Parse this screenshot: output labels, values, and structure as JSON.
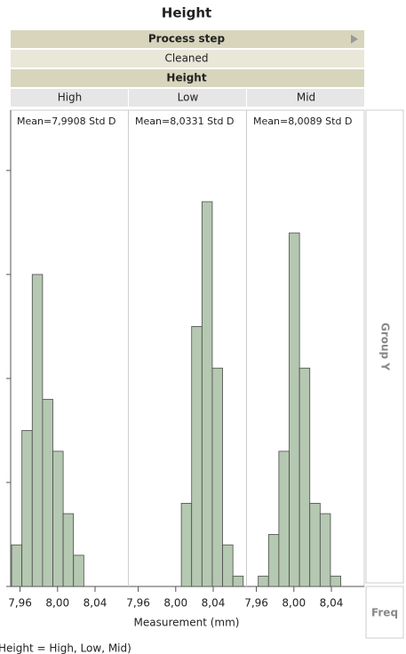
{
  "chart_data": {
    "type": "histogram",
    "title": "Height",
    "group_headers": [
      "Process step",
      "Cleaned",
      "Height"
    ],
    "y_group_label": "Group Y",
    "freq_label": "Freq",
    "x_label": "Measurement (mm)",
    "footnote": "Height = High, Low, Mid)",
    "xlim": [
      7.95,
      8.076
    ],
    "xticks": [
      {
        "value": 7.96,
        "label": "7,96"
      },
      {
        "value": 8.0,
        "label": "8,00"
      },
      {
        "value": 8.04,
        "label": "8,04"
      }
    ],
    "ylim": [
      0,
      45.8
    ],
    "yticks": [
      0,
      10,
      20,
      30,
      40
    ],
    "series": [
      {
        "name": "High",
        "color": "#b5c8b1",
        "stat_label": "Mean=7,9908 Std D",
        "bins": [
          7.951,
          7.962,
          7.973,
          7.984,
          7.995,
          8.006,
          8.017,
          8.028
        ],
        "values": [
          4,
          15,
          30,
          18,
          13,
          7,
          3
        ]
      },
      {
        "name": "Low",
        "color": "#b5c8b1",
        "stat_label": "Mean=8,0331 Std D",
        "bins": [
          8.006,
          8.017,
          8.028,
          8.039,
          8.05,
          8.061,
          8.072
        ],
        "values": [
          8,
          25,
          37,
          21,
          4,
          1
        ]
      },
      {
        "name": "Mid",
        "color": "#b5c8b1",
        "stat_label": "Mean=8,0089 Std D",
        "bins": [
          7.962,
          7.973,
          7.984,
          7.995,
          8.006,
          8.017,
          8.028,
          8.039,
          8.05
        ],
        "values": [
          1,
          5,
          13,
          34,
          21,
          8,
          7,
          1
        ]
      }
    ]
  }
}
